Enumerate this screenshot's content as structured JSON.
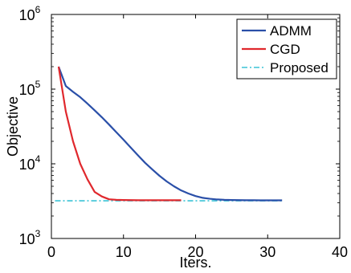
{
  "chart_data": {
    "type": "line",
    "xlabel": "Iters.",
    "ylabel": "Objective",
    "xlim": [
      0,
      40
    ],
    "ylim": [
      1000,
      1000000
    ],
    "yscale": "log",
    "x_ticks": [
      0,
      10,
      20,
      30,
      40
    ],
    "y_ticks": [
      {
        "value": 1000,
        "base": "10",
        "exp": "3"
      },
      {
        "value": 10000,
        "base": "10",
        "exp": "4"
      },
      {
        "value": 100000,
        "base": "10",
        "exp": "5"
      },
      {
        "value": 1000000,
        "base": "10",
        "exp": "6"
      }
    ],
    "grid": false,
    "legend_position": "top-right",
    "series": [
      {
        "name": "ADMM",
        "color": "#2a4fa8",
        "style": "solid",
        "x": [
          1,
          2,
          3,
          4,
          5,
          6,
          7,
          8,
          9,
          10,
          11,
          12,
          13,
          14,
          15,
          16,
          17,
          18,
          19,
          20,
          21,
          22,
          23,
          24,
          25,
          26,
          27,
          28,
          29,
          30,
          31,
          32
        ],
        "y": [
          200000,
          110000,
          92000,
          78000,
          64000,
          52000,
          42000,
          33500,
          26500,
          21000,
          16500,
          13000,
          10300,
          8400,
          6900,
          5800,
          5000,
          4400,
          4000,
          3700,
          3500,
          3400,
          3330,
          3290,
          3270,
          3260,
          3250,
          3250,
          3240,
          3240,
          3240,
          3240
        ]
      },
      {
        "name": "CGD",
        "color": "#e0282d",
        "style": "solid",
        "x": [
          1,
          2,
          3,
          4,
          5,
          6,
          7,
          8,
          9,
          10,
          11,
          12,
          13,
          14,
          15,
          16,
          17,
          18
        ],
        "y": [
          200000,
          50000,
          20000,
          10000,
          6200,
          4200,
          3650,
          3350,
          3290,
          3270,
          3260,
          3250,
          3250,
          3250,
          3250,
          3250,
          3250,
          3250
        ]
      },
      {
        "name": "Proposed",
        "color": "#3bc3d6",
        "style": "dashdot",
        "x": [
          0.5,
          32
        ],
        "y": [
          3200,
          3200
        ]
      }
    ]
  }
}
